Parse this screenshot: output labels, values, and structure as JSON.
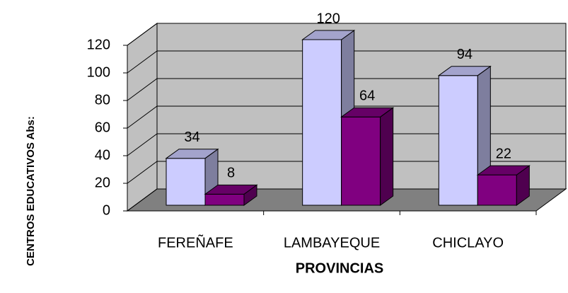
{
  "chart_data": {
    "type": "bar3d",
    "categories": [
      "FEREÑAFE",
      "LAMBAYEQUE",
      "CHICLAYO"
    ],
    "series": [
      {
        "color": "#ccccff",
        "values": [
          34,
          120,
          94
        ]
      },
      {
        "color": "#800080",
        "values": [
          8,
          64,
          22
        ]
      }
    ],
    "ylim": [
      0,
      120
    ],
    "yticks": [
      0,
      20,
      40,
      60,
      80,
      100,
      120
    ],
    "grid": true,
    "xlabel": "PROVINCIAS",
    "ylabel": "CENTROS EDUCATIVOS Abs:"
  }
}
